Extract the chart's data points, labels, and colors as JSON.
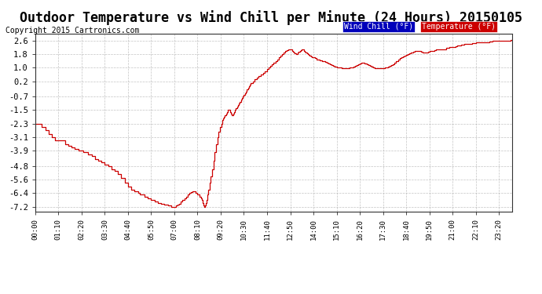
{
  "title": "Outdoor Temperature vs Wind Chill per Minute (24 Hours) 20150105",
  "copyright": "Copyright 2015 Cartronics.com",
  "yticks": [
    2.6,
    1.8,
    1.0,
    0.2,
    -0.7,
    -1.5,
    -2.3,
    -3.1,
    -3.9,
    -4.8,
    -5.6,
    -6.4,
    -7.2
  ],
  "ylim": [
    -7.5,
    3.0
  ],
  "background_color": "#ffffff",
  "grid_color": "#aaaaaa",
  "line_color": "#cc0000",
  "wind_chill_label": "Wind Chill (°F)",
  "temp_label": "Temperature (°F)",
  "wind_chill_bg": "#0000bb",
  "temp_bg": "#cc0000",
  "label_text_color": "#ffffff",
  "title_fontsize": 12,
  "copyright_fontsize": 7,
  "total_minutes": 1440,
  "x_tick_labels_step": 70,
  "data_points": [
    [
      0,
      -2.3
    ],
    [
      5,
      -2.3
    ],
    [
      15,
      -2.3
    ],
    [
      20,
      -2.5
    ],
    [
      30,
      -2.7
    ],
    [
      40,
      -2.9
    ],
    [
      50,
      -3.1
    ],
    [
      60,
      -3.3
    ],
    [
      70,
      -3.3
    ],
    [
      80,
      -3.3
    ],
    [
      90,
      -3.5
    ],
    [
      100,
      -3.6
    ],
    [
      110,
      -3.7
    ],
    [
      120,
      -3.8
    ],
    [
      130,
      -3.9
    ],
    [
      140,
      -3.9
    ],
    [
      145,
      -4.0
    ],
    [
      155,
      -4.0
    ],
    [
      160,
      -4.1
    ],
    [
      170,
      -4.2
    ],
    [
      180,
      -4.4
    ],
    [
      190,
      -4.5
    ],
    [
      200,
      -4.6
    ],
    [
      210,
      -4.7
    ],
    [
      220,
      -4.8
    ],
    [
      225,
      -4.8
    ],
    [
      230,
      -5.0
    ],
    [
      240,
      -5.1
    ],
    [
      250,
      -5.3
    ],
    [
      260,
      -5.5
    ],
    [
      270,
      -5.8
    ],
    [
      280,
      -6.0
    ],
    [
      290,
      -6.2
    ],
    [
      300,
      -6.3
    ],
    [
      310,
      -6.4
    ],
    [
      315,
      -6.5
    ],
    [
      325,
      -6.5
    ],
    [
      330,
      -6.6
    ],
    [
      340,
      -6.7
    ],
    [
      350,
      -6.8
    ],
    [
      360,
      -6.9
    ],
    [
      370,
      -7.0
    ],
    [
      380,
      -7.05
    ],
    [
      390,
      -7.1
    ],
    [
      400,
      -7.15
    ],
    [
      410,
      -7.2
    ],
    [
      415,
      -7.2
    ],
    [
      420,
      -7.2
    ],
    [
      422,
      -7.2
    ],
    [
      425,
      -7.15
    ],
    [
      430,
      -7.1
    ],
    [
      435,
      -7.05
    ],
    [
      440,
      -6.9
    ],
    [
      445,
      -6.8
    ],
    [
      450,
      -6.7
    ],
    [
      455,
      -6.6
    ],
    [
      460,
      -6.5
    ],
    [
      465,
      -6.4
    ],
    [
      470,
      -6.35
    ],
    [
      475,
      -6.3
    ],
    [
      480,
      -6.3
    ],
    [
      485,
      -6.4
    ],
    [
      490,
      -6.5
    ],
    [
      492,
      -6.5
    ],
    [
      495,
      -6.6
    ],
    [
      500,
      -6.7
    ],
    [
      502,
      -6.8
    ],
    [
      505,
      -7.0
    ],
    [
      507,
      -7.1
    ],
    [
      509,
      -7.15
    ],
    [
      510,
      -7.2
    ],
    [
      511,
      -7.2
    ],
    [
      513,
      -7.15
    ],
    [
      515,
      -7.0
    ],
    [
      517,
      -6.8
    ],
    [
      520,
      -6.5
    ],
    [
      523,
      -6.2
    ],
    [
      526,
      -5.8
    ],
    [
      530,
      -5.4
    ],
    [
      534,
      -5.0
    ],
    [
      538,
      -4.5
    ],
    [
      542,
      -4.0
    ],
    [
      546,
      -3.5
    ],
    [
      550,
      -3.1
    ],
    [
      554,
      -2.8
    ],
    [
      558,
      -2.5
    ],
    [
      562,
      -2.3
    ],
    [
      565,
      -2.1
    ],
    [
      568,
      -2.0
    ],
    [
      570,
      -1.9
    ],
    [
      573,
      -1.8
    ],
    [
      576,
      -1.7
    ],
    [
      579,
      -1.6
    ],
    [
      582,
      -1.5
    ],
    [
      585,
      -1.5
    ],
    [
      588,
      -1.6
    ],
    [
      591,
      -1.7
    ],
    [
      594,
      -1.8
    ],
    [
      597,
      -1.7
    ],
    [
      600,
      -1.6
    ],
    [
      603,
      -1.5
    ],
    [
      606,
      -1.4
    ],
    [
      609,
      -1.3
    ],
    [
      612,
      -1.2
    ],
    [
      615,
      -1.1
    ],
    [
      618,
      -1.0
    ],
    [
      621,
      -0.9
    ],
    [
      624,
      -0.8
    ],
    [
      627,
      -0.7
    ],
    [
      630,
      -0.6
    ],
    [
      633,
      -0.5
    ],
    [
      636,
      -0.4
    ],
    [
      639,
      -0.3
    ],
    [
      642,
      -0.2
    ],
    [
      645,
      -0.1
    ],
    [
      648,
      0.0
    ],
    [
      651,
      0.1
    ],
    [
      654,
      0.1
    ],
    [
      657,
      0.2
    ],
    [
      660,
      0.2
    ],
    [
      663,
      0.3
    ],
    [
      666,
      0.3
    ],
    [
      669,
      0.4
    ],
    [
      672,
      0.4
    ],
    [
      675,
      0.5
    ],
    [
      678,
      0.5
    ],
    [
      681,
      0.6
    ],
    [
      684,
      0.6
    ],
    [
      687,
      0.7
    ],
    [
      690,
      0.7
    ],
    [
      693,
      0.8
    ],
    [
      696,
      0.8
    ],
    [
      699,
      0.9
    ],
    [
      702,
      0.9
    ],
    [
      705,
      1.0
    ],
    [
      710,
      1.1
    ],
    [
      715,
      1.2
    ],
    [
      720,
      1.3
    ],
    [
      725,
      1.4
    ],
    [
      730,
      1.5
    ],
    [
      735,
      1.6
    ],
    [
      740,
      1.7
    ],
    [
      745,
      1.8
    ],
    [
      750,
      1.9
    ],
    [
      755,
      2.0
    ],
    [
      760,
      2.05
    ],
    [
      765,
      2.1
    ],
    [
      770,
      2.1
    ],
    [
      775,
      2.0
    ],
    [
      778,
      1.95
    ],
    [
      781,
      1.9
    ],
    [
      784,
      1.85
    ],
    [
      787,
      1.8
    ],
    [
      790,
      1.8
    ],
    [
      793,
      1.9
    ],
    [
      796,
      1.95
    ],
    [
      799,
      2.0
    ],
    [
      802,
      2.05
    ],
    [
      805,
      2.1
    ],
    [
      808,
      2.1
    ],
    [
      811,
      2.0
    ],
    [
      814,
      1.95
    ],
    [
      817,
      1.9
    ],
    [
      820,
      1.85
    ],
    [
      823,
      1.8
    ],
    [
      826,
      1.75
    ],
    [
      829,
      1.7
    ],
    [
      832,
      1.65
    ],
    [
      835,
      1.6
    ],
    [
      840,
      1.6
    ],
    [
      845,
      1.55
    ],
    [
      850,
      1.5
    ],
    [
      855,
      1.5
    ],
    [
      860,
      1.45
    ],
    [
      865,
      1.4
    ],
    [
      870,
      1.4
    ],
    [
      875,
      1.35
    ],
    [
      880,
      1.3
    ],
    [
      885,
      1.25
    ],
    [
      890,
      1.2
    ],
    [
      895,
      1.15
    ],
    [
      900,
      1.1
    ],
    [
      905,
      1.05
    ],
    [
      910,
      1.0
    ],
    [
      915,
      1.0
    ],
    [
      920,
      1.0
    ],
    [
      925,
      0.95
    ],
    [
      930,
      0.95
    ],
    [
      935,
      0.95
    ],
    [
      940,
      0.95
    ],
    [
      945,
      0.95
    ],
    [
      950,
      1.0
    ],
    [
      955,
      1.0
    ],
    [
      960,
      1.05
    ],
    [
      965,
      1.1
    ],
    [
      970,
      1.15
    ],
    [
      975,
      1.2
    ],
    [
      980,
      1.25
    ],
    [
      985,
      1.3
    ],
    [
      990,
      1.3
    ],
    [
      995,
      1.25
    ],
    [
      1000,
      1.2
    ],
    [
      1005,
      1.15
    ],
    [
      1010,
      1.1
    ],
    [
      1015,
      1.05
    ],
    [
      1020,
      1.0
    ],
    [
      1025,
      0.95
    ],
    [
      1030,
      0.95
    ],
    [
      1035,
      0.95
    ],
    [
      1040,
      0.95
    ],
    [
      1045,
      0.95
    ],
    [
      1050,
      0.95
    ],
    [
      1055,
      1.0
    ],
    [
      1060,
      1.0
    ],
    [
      1065,
      1.05
    ],
    [
      1070,
      1.1
    ],
    [
      1075,
      1.15
    ],
    [
      1080,
      1.2
    ],
    [
      1085,
      1.3
    ],
    [
      1090,
      1.4
    ],
    [
      1095,
      1.5
    ],
    [
      1100,
      1.55
    ],
    [
      1105,
      1.6
    ],
    [
      1110,
      1.65
    ],
    [
      1115,
      1.7
    ],
    [
      1120,
      1.75
    ],
    [
      1125,
      1.8
    ],
    [
      1130,
      1.85
    ],
    [
      1135,
      1.9
    ],
    [
      1140,
      1.95
    ],
    [
      1145,
      2.0
    ],
    [
      1150,
      2.0
    ],
    [
      1155,
      2.0
    ],
    [
      1160,
      2.0
    ],
    [
      1165,
      1.95
    ],
    [
      1170,
      1.9
    ],
    [
      1175,
      1.9
    ],
    [
      1180,
      1.9
    ],
    [
      1185,
      1.95
    ],
    [
      1190,
      2.0
    ],
    [
      1195,
      2.0
    ],
    [
      1200,
      2.0
    ],
    [
      1205,
      2.05
    ],
    [
      1210,
      2.1
    ],
    [
      1215,
      2.1
    ],
    [
      1220,
      2.1
    ],
    [
      1225,
      2.1
    ],
    [
      1230,
      2.1
    ],
    [
      1235,
      2.1
    ],
    [
      1240,
      2.15
    ],
    [
      1245,
      2.15
    ],
    [
      1250,
      2.2
    ],
    [
      1255,
      2.2
    ],
    [
      1260,
      2.2
    ],
    [
      1265,
      2.2
    ],
    [
      1270,
      2.25
    ],
    [
      1275,
      2.3
    ],
    [
      1280,
      2.3
    ],
    [
      1285,
      2.35
    ],
    [
      1290,
      2.35
    ],
    [
      1295,
      2.4
    ],
    [
      1300,
      2.4
    ],
    [
      1305,
      2.4
    ],
    [
      1310,
      2.4
    ],
    [
      1315,
      2.4
    ],
    [
      1320,
      2.45
    ],
    [
      1325,
      2.45
    ],
    [
      1330,
      2.5
    ],
    [
      1335,
      2.5
    ],
    [
      1340,
      2.5
    ],
    [
      1345,
      2.5
    ],
    [
      1350,
      2.5
    ],
    [
      1355,
      2.5
    ],
    [
      1360,
      2.5
    ],
    [
      1365,
      2.5
    ],
    [
      1370,
      2.55
    ],
    [
      1375,
      2.55
    ],
    [
      1380,
      2.6
    ],
    [
      1385,
      2.6
    ],
    [
      1390,
      2.6
    ],
    [
      1395,
      2.6
    ],
    [
      1400,
      2.6
    ],
    [
      1405,
      2.6
    ],
    [
      1410,
      2.6
    ],
    [
      1415,
      2.6
    ],
    [
      1420,
      2.6
    ],
    [
      1425,
      2.6
    ],
    [
      1430,
      2.6
    ],
    [
      1435,
      2.65
    ],
    [
      1439,
      2.65
    ]
  ]
}
